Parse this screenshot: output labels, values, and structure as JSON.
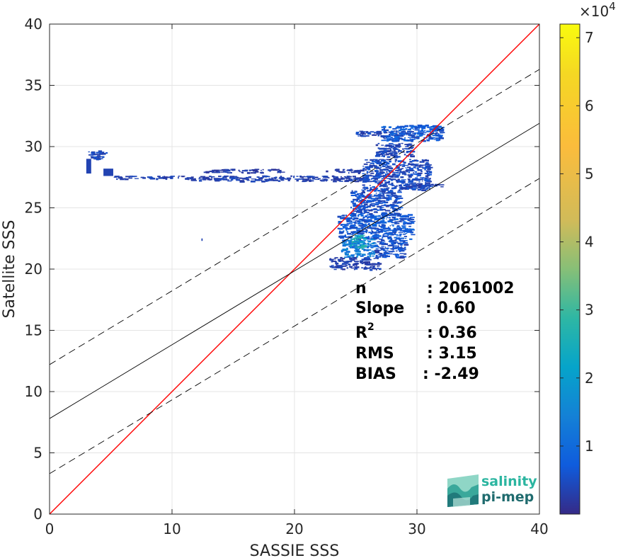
{
  "chart_data": {
    "type": "heatmap",
    "title": "",
    "xlabel": "SASSIE SSS",
    "ylabel": "Satellite SSS",
    "xlim": [
      0,
      40
    ],
    "ylim": [
      0,
      40
    ],
    "xticks": [
      "0",
      "10",
      "20",
      "30",
      "40"
    ],
    "yticks": [
      "0",
      "5",
      "10",
      "15",
      "20",
      "25",
      "30",
      "35",
      "40"
    ],
    "grid": true,
    "colorbar": {
      "colormap": "parula",
      "range": [
        0,
        72000
      ],
      "ticks": [
        "1",
        "2",
        "3",
        "4",
        "5",
        "6",
        "7"
      ],
      "tick_values": [
        10000,
        20000,
        30000,
        40000,
        50000,
        60000,
        70000
      ],
      "multiplier_prefix": "×10",
      "multiplier_exp": "4"
    },
    "lines": [
      {
        "name": "identity",
        "style": "solid",
        "color": "#ff0000",
        "x": [
          0,
          40
        ],
        "y": [
          0,
          40
        ]
      },
      {
        "name": "fit",
        "style": "solid",
        "color": "#000000",
        "x": [
          0,
          40
        ],
        "y": [
          7.8,
          31.9
        ]
      },
      {
        "name": "fit-upper",
        "style": "dashed",
        "color": "#000000",
        "x": [
          0,
          40
        ],
        "y": [
          12.2,
          36.3
        ]
      },
      {
        "name": "fit-lower",
        "style": "dashed",
        "color": "#000000",
        "x": [
          0,
          40
        ],
        "y": [
          3.3,
          27.4
        ]
      }
    ],
    "density_regions": [
      {
        "x0": 3.0,
        "x1": 4.6,
        "y0": 29.0,
        "y1": 29.7,
        "level": 0.06
      },
      {
        "x0": 3.0,
        "x1": 3.4,
        "y0": 27.8,
        "y1": 29.0,
        "level": 0.05
      },
      {
        "x0": 4.4,
        "x1": 5.2,
        "y0": 27.6,
        "y1": 28.2,
        "level": 0.05
      },
      {
        "x0": 5.2,
        "x1": 25.5,
        "y0": 27.4,
        "y1": 27.65,
        "level": 0.05
      },
      {
        "x0": 11.5,
        "x1": 25.5,
        "y0": 27.2,
        "y1": 27.4,
        "level": 0.05
      },
      {
        "x0": 12.5,
        "x1": 19.0,
        "y0": 27.9,
        "y1": 28.2,
        "level": 0.04
      },
      {
        "x0": 22.5,
        "x1": 25.8,
        "y0": 27.9,
        "y1": 28.2,
        "level": 0.04
      },
      {
        "x0": 25.0,
        "x1": 29.5,
        "y0": 30.9,
        "y1": 31.3,
        "level": 0.06
      },
      {
        "x0": 27.0,
        "x1": 32.0,
        "y0": 30.5,
        "y1": 31.8,
        "level": 0.1
      },
      {
        "x0": 26.5,
        "x1": 29.5,
        "y0": 29.2,
        "y1": 30.3,
        "level": 0.06
      },
      {
        "x0": 25.5,
        "x1": 31.0,
        "y0": 26.5,
        "y1": 29.0,
        "level": 0.07
      },
      {
        "x0": 29.0,
        "x1": 32.0,
        "y0": 26.7,
        "y1": 27.0,
        "level": 0.05
      },
      {
        "x0": 24.5,
        "x1": 28.5,
        "y0": 24.5,
        "y1": 26.5,
        "level": 0.08
      },
      {
        "x0": 23.5,
        "x1": 29.5,
        "y0": 22.5,
        "y1": 24.5,
        "level": 0.1
      },
      {
        "x0": 23.8,
        "x1": 26.5,
        "y0": 21.0,
        "y1": 22.5,
        "level": 0.18
      },
      {
        "x0": 24.5,
        "x1": 25.8,
        "y0": 21.8,
        "y1": 22.8,
        "level": 0.3
      },
      {
        "x0": 26.5,
        "x1": 29.0,
        "y0": 21.0,
        "y1": 22.5,
        "level": 0.08
      },
      {
        "x0": 22.8,
        "x1": 27.0,
        "y0": 20.0,
        "y1": 21.0,
        "level": 0.05
      },
      {
        "x0": 12.4,
        "x1": 12.5,
        "y0": 22.3,
        "y1": 22.5,
        "level": 0.05
      }
    ]
  },
  "stats": [
    {
      "label": "n",
      "value": ": 2061002"
    },
    {
      "label": "Slope",
      "value": ": 0.60"
    },
    {
      "label": "R",
      "sup": "2",
      "value": ": 0.36"
    },
    {
      "label": "RMS",
      "value": ": 3.15"
    },
    {
      "label": "BIAS",
      "value": ": -2.49"
    }
  ],
  "logo": {
    "line1": "salinity",
    "line2": "pi-mep",
    "color1": "#2bb5a0",
    "color2": "#1f6b6e"
  }
}
